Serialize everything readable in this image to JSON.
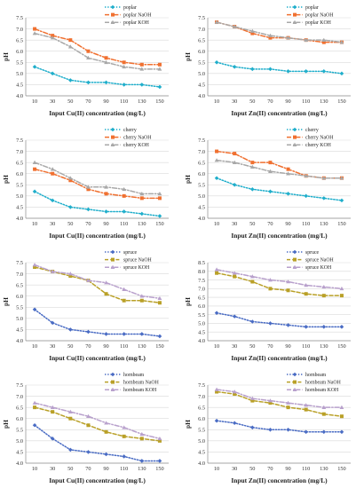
{
  "chart_data": [
    {
      "type": "line",
      "x": [
        10,
        30,
        50,
        70,
        90,
        110,
        130,
        150
      ],
      "xlabel": "Input Cu(II) concentration (mg/L)",
      "ylabel": "pH",
      "ylim": [
        4.0,
        7.5
      ],
      "yticks": [
        "4.0",
        "4.5",
        "5.0",
        "5.5",
        "6.0",
        "6.5",
        "7.0",
        "7.5"
      ],
      "legend_position": "top-right",
      "series": [
        {
          "name": "poplar",
          "color": "#1faecb",
          "style": "dotted",
          "marker": "diamond",
          "values": [
            5.3,
            5.0,
            4.7,
            4.6,
            4.6,
            4.5,
            4.5,
            4.4
          ]
        },
        {
          "name": "poplar NaOH",
          "color": "#f07030",
          "style": "dashdot",
          "marker": "square",
          "values": [
            7.0,
            6.7,
            6.5,
            6.0,
            5.7,
            5.5,
            5.4,
            5.4
          ]
        },
        {
          "name": "poplar KOH",
          "color": "#a8a8a8",
          "style": "dashdot",
          "marker": "triangle",
          "values": [
            6.8,
            6.6,
            6.2,
            5.7,
            5.5,
            5.3,
            5.2,
            5.2
          ]
        }
      ]
    },
    {
      "type": "line",
      "x": [
        10,
        30,
        50,
        70,
        90,
        110,
        130,
        150
      ],
      "xlabel": "Input Zn(II) concentration (mg/L)",
      "ylabel": "pH",
      "ylim": [
        4.0,
        7.5
      ],
      "yticks": [
        "4.0",
        "4.5",
        "5.0",
        "5.5",
        "6.0",
        "6.5",
        "7.0",
        "7.5"
      ],
      "legend_position": "top-right",
      "series": [
        {
          "name": "poplar",
          "color": "#1faecb",
          "style": "dotted",
          "marker": "diamond",
          "values": [
            5.5,
            5.3,
            5.2,
            5.2,
            5.1,
            5.1,
            5.1,
            5.0
          ]
        },
        {
          "name": "poplar NaOH",
          "color": "#f07030",
          "style": "dashdot",
          "marker": "square",
          "values": [
            7.3,
            7.1,
            6.8,
            6.6,
            6.6,
            6.5,
            6.4,
            6.4
          ]
        },
        {
          "name": "poplar KOH",
          "color": "#a8a8a8",
          "style": "dashdot",
          "marker": "triangle",
          "values": [
            7.3,
            7.1,
            6.9,
            6.7,
            6.6,
            6.5,
            6.5,
            6.4
          ]
        }
      ]
    },
    {
      "type": "line",
      "x": [
        10,
        30,
        50,
        70,
        90,
        110,
        130,
        150
      ],
      "xlabel": "Input Cu(II) concentration (mg/L)",
      "ylabel": "pH",
      "ylim": [
        4.0,
        7.5
      ],
      "yticks": [
        "4.0",
        "4.5",
        "5.0",
        "5.5",
        "6.0",
        "6.5",
        "7.0",
        "7.5"
      ],
      "legend_position": "top-right",
      "series": [
        {
          "name": "cherry",
          "color": "#1faecb",
          "style": "dotted",
          "marker": "diamond",
          "values": [
            5.2,
            4.8,
            4.5,
            4.4,
            4.3,
            4.3,
            4.2,
            4.1
          ]
        },
        {
          "name": "cherry NaOH",
          "color": "#f07030",
          "style": "dashdot",
          "marker": "square",
          "values": [
            6.2,
            6.0,
            5.7,
            5.3,
            5.1,
            5.0,
            4.9,
            4.9
          ]
        },
        {
          "name": "cherry KOH",
          "color": "#a8a8a8",
          "style": "dashdot",
          "marker": "triangle",
          "values": [
            6.5,
            6.2,
            5.8,
            5.4,
            5.4,
            5.3,
            5.1,
            5.1
          ]
        }
      ]
    },
    {
      "type": "line",
      "x": [
        10,
        30,
        50,
        70,
        90,
        110,
        130,
        150
      ],
      "xlabel": "Input Zn(II) concentration (mg/L)",
      "ylabel": "pH",
      "ylim": [
        4.0,
        7.5
      ],
      "yticks": [
        "4.0",
        "4.5",
        "5.0",
        "5.5",
        "6.0",
        "6.5",
        "7.0",
        "7.5"
      ],
      "legend_position": "top-right",
      "series": [
        {
          "name": "cherry",
          "color": "#1faecb",
          "style": "dotted",
          "marker": "diamond",
          "values": [
            5.8,
            5.5,
            5.3,
            5.2,
            5.1,
            5.0,
            4.9,
            4.8
          ]
        },
        {
          "name": "cherry NaOH",
          "color": "#f07030",
          "style": "dashdot",
          "marker": "square",
          "values": [
            7.0,
            6.9,
            6.5,
            6.5,
            6.2,
            5.9,
            5.8,
            5.8
          ]
        },
        {
          "name": "cherry KOH",
          "color": "#a8a8a8",
          "style": "dashdot",
          "marker": "triangle",
          "values": [
            6.6,
            6.5,
            6.3,
            6.1,
            6.0,
            5.9,
            5.8,
            5.8
          ]
        }
      ]
    },
    {
      "type": "line",
      "x": [
        10,
        30,
        50,
        70,
        90,
        110,
        130,
        150
      ],
      "xlabel": "Input Cu(II) concentration (mg/L)",
      "ylabel": "pH",
      "ylim": [
        4.0,
        7.5
      ],
      "yticks": [
        "4.0",
        "4.5",
        "5.0",
        "5.5",
        "6.0",
        "6.5",
        "7.0",
        "7.5"
      ],
      "legend_position": "top-right",
      "series": [
        {
          "name": "spruce",
          "color": "#4a6cc4",
          "style": "dotted",
          "marker": "diamond",
          "values": [
            5.4,
            4.8,
            4.5,
            4.4,
            4.3,
            4.3,
            4.3,
            4.2
          ]
        },
        {
          "name": "spruce NaOH",
          "color": "#b9a027",
          "style": "dashed",
          "marker": "square",
          "values": [
            7.3,
            7.1,
            6.9,
            6.7,
            6.1,
            5.8,
            5.8,
            5.7
          ]
        },
        {
          "name": "spruce KOH",
          "color": "#b8a0cc",
          "style": "dashdot",
          "marker": "triangle",
          "values": [
            7.4,
            7.1,
            7.0,
            6.7,
            6.6,
            6.3,
            6.0,
            5.9
          ]
        }
      ]
    },
    {
      "type": "line",
      "x": [
        10,
        30,
        50,
        70,
        90,
        110,
        130,
        150
      ],
      "xlabel": "Input Zn(II) concentration (mg/L)",
      "ylabel": "pH",
      "ylim": [
        4.0,
        8.5
      ],
      "yticks": [
        "4.0",
        "4.5",
        "5.0",
        "5.5",
        "6.0",
        "6.5",
        "7.0",
        "7.5",
        "8.0",
        "8.5"
      ],
      "legend_position": "top-right",
      "series": [
        {
          "name": "spruce",
          "color": "#4a6cc4",
          "style": "dotted",
          "marker": "diamond",
          "values": [
            5.6,
            5.4,
            5.1,
            5.0,
            4.9,
            4.8,
            4.8,
            4.8
          ]
        },
        {
          "name": "spruce NaOH",
          "color": "#b9a027",
          "style": "dashed",
          "marker": "square",
          "values": [
            7.9,
            7.7,
            7.4,
            7.0,
            6.9,
            6.7,
            6.6,
            6.6
          ]
        },
        {
          "name": "spruce KOH",
          "color": "#b8a0cc",
          "style": "dashdot",
          "marker": "triangle",
          "values": [
            8.1,
            7.9,
            7.7,
            7.5,
            7.4,
            7.2,
            7.1,
            7.0
          ]
        }
      ]
    },
    {
      "type": "line",
      "x": [
        10,
        30,
        50,
        70,
        90,
        110,
        130,
        150
      ],
      "xlabel": "Input Cu(II) concentration (mg/L)",
      "ylabel": "pH",
      "ylim": [
        4.0,
        7.5
      ],
      "yticks": [
        "4.0",
        "4.5",
        "5.0",
        "5.5",
        "6.0",
        "6.5",
        "7.0",
        "7.5"
      ],
      "legend_position": "top-right",
      "series": [
        {
          "name": "hornbeam",
          "color": "#4a6cc4",
          "style": "dotted",
          "marker": "diamond",
          "values": [
            5.7,
            5.1,
            4.6,
            4.5,
            4.4,
            4.3,
            4.1,
            4.1
          ]
        },
        {
          "name": "hornbeam NaOH",
          "color": "#b9a027",
          "style": "dashed",
          "marker": "square",
          "values": [
            6.5,
            6.3,
            6.0,
            5.7,
            5.4,
            5.2,
            5.1,
            5.0
          ]
        },
        {
          "name": "hornbeam KOH",
          "color": "#b8a0cc",
          "style": "dashdot",
          "marker": "triangle",
          "values": [
            6.7,
            6.5,
            6.3,
            6.1,
            5.8,
            5.6,
            5.3,
            5.1
          ]
        }
      ]
    },
    {
      "type": "line",
      "x": [
        10,
        30,
        50,
        70,
        90,
        110,
        130,
        150
      ],
      "xlabel": "Input Zn(II) concentration (mg/L)",
      "ylabel": "pH",
      "ylim": [
        4.0,
        7.5
      ],
      "yticks": [
        "4.0",
        "4.5",
        "5.0",
        "5.5",
        "6.0",
        "6.5",
        "7.0",
        "7.5"
      ],
      "legend_position": "top-right",
      "series": [
        {
          "name": "hornbeam",
          "color": "#4a6cc4",
          "style": "dotted",
          "marker": "diamond",
          "values": [
            5.9,
            5.8,
            5.6,
            5.5,
            5.5,
            5.4,
            5.4,
            5.4
          ]
        },
        {
          "name": "hornbeam NaOH",
          "color": "#b9a027",
          "style": "dashed",
          "marker": "square",
          "values": [
            7.2,
            7.1,
            6.8,
            6.7,
            6.5,
            6.4,
            6.2,
            6.1
          ]
        },
        {
          "name": "hornbeam KOH",
          "color": "#b8a0cc",
          "style": "dashdot",
          "marker": "triangle",
          "values": [
            7.3,
            7.2,
            6.9,
            6.8,
            6.7,
            6.6,
            6.5,
            6.5
          ]
        }
      ]
    }
  ]
}
